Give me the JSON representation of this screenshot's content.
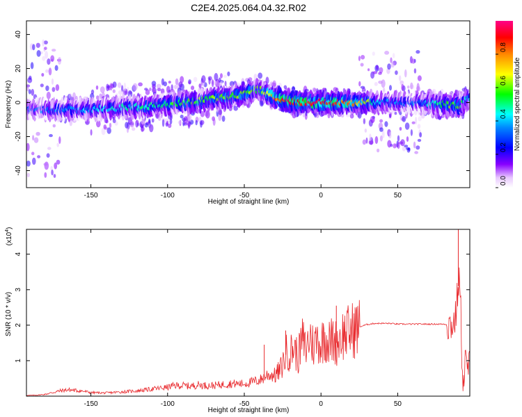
{
  "title": "C2E4.2025.064.04.32.R02",
  "chart_data": [
    {
      "type": "heatmap",
      "xlabel": "Height of straight line (km)",
      "ylabel": "Frequency (Hz)",
      "xlim": [
        -192,
        97
      ],
      "ylim": [
        -50,
        48
      ],
      "xticks": [
        -150,
        -100,
        -50,
        0,
        50
      ],
      "yticks": [
        -40,
        -20,
        0,
        20,
        40
      ],
      "grid": false,
      "colorbar": {
        "label": "Normalized spectral amplitude",
        "range": [
          0,
          1
        ],
        "ticks": [
          "0.0",
          "0.2",
          "0.4",
          "0.6",
          "0.8"
        ],
        "colormap": [
          "#ffffff",
          "#8800ff",
          "#0000ff",
          "#00ffff",
          "#00ff00",
          "#ffff00",
          "#ff8800",
          "#ff0000",
          "#ff0088"
        ]
      },
      "ridge": {
        "x": [
          -190,
          -170,
          -150,
          -130,
          -110,
          -90,
          -70,
          -50,
          -40,
          -30,
          -20,
          -10,
          0,
          10,
          25,
          40,
          60,
          80,
          90,
          95
        ],
        "freq": [
          -4,
          -4,
          -4,
          -3,
          -2,
          0,
          2,
          5,
          8,
          3,
          1,
          0,
          0,
          0,
          0,
          0,
          0,
          -1,
          -2,
          2
        ],
        "amplitude": [
          0.3,
          0.35,
          0.4,
          0.45,
          0.5,
          0.55,
          0.6,
          0.6,
          0.6,
          0.8,
          0.95,
          0.9,
          0.9,
          0.85,
          0.75,
          0.35,
          0.3,
          0.55,
          0.6,
          0.4
        ]
      }
    },
    {
      "type": "line",
      "xlabel": "Height of straight line (km)",
      "ylabel": "SNR (10 * v/v)",
      "y_scale_label": "(x10",
      "y_scale_exp": "4",
      "xlim": [
        -192,
        97
      ],
      "ylim": [
        0,
        4.7
      ],
      "xticks": [
        -150,
        -100,
        -50,
        0,
        50
      ],
      "yticks": [
        1,
        2,
        3,
        4
      ],
      "grid": false,
      "color": "#e8262a",
      "series": [
        {
          "name": "",
          "x": [
            -192,
            -185,
            -180,
            -175,
            -170,
            -165,
            -160,
            -155,
            -150,
            -140,
            -130,
            -120,
            -110,
            -100,
            -95,
            -90,
            -85,
            -80,
            -75,
            -70,
            -65,
            -60,
            -55,
            -50,
            -45,
            -40,
            -38,
            -35,
            -30,
            -27,
            -25,
            -22,
            -20,
            -18,
            -15,
            -12,
            -10,
            -7,
            -5,
            -2,
            0,
            2,
            5,
            8,
            10,
            13,
            15,
            18,
            20,
            25,
            30,
            35,
            40,
            45,
            50,
            55,
            60,
            65,
            70,
            75,
            80,
            83,
            85,
            87,
            88,
            89,
            90,
            91,
            92,
            93,
            94,
            95,
            96,
            97
          ],
          "y": [
            0.02,
            0.03,
            0.05,
            0.1,
            0.15,
            0.18,
            0.16,
            0.14,
            0.1,
            0.09,
            0.12,
            0.15,
            0.2,
            0.25,
            0.3,
            0.3,
            0.28,
            0.32,
            0.3,
            0.3,
            0.32,
            0.35,
            0.35,
            0.35,
            0.4,
            0.45,
            0.5,
            0.6,
            0.6,
            0.7,
            0.9,
            1.3,
            1.2,
            1.4,
            1.1,
            1.6,
            1.3,
            1.7,
            1.4,
            1.65,
            1.4,
            1.75,
            1.5,
            1.6,
            1.5,
            1.7,
            1.75,
            1.8,
            1.85,
            1.95,
            2.02,
            2.05,
            2.05,
            2.05,
            2.03,
            2.03,
            2.03,
            2.03,
            2.03,
            2.03,
            2.03,
            2.02,
            2.0,
            2.1,
            2.3,
            2.9,
            3.3,
            2.6,
            1.0,
            0.2,
            1.2,
            0.7,
            0.9,
            0.8
          ],
          "spikes": [
            {
              "x": 10,
              "y": 2.55
            },
            {
              "x": -37,
              "y": 1.45
            },
            {
              "x": -23,
              "y": 1.85
            },
            {
              "x": 89.5,
              "y": 4.85
            }
          ]
        }
      ]
    }
  ]
}
